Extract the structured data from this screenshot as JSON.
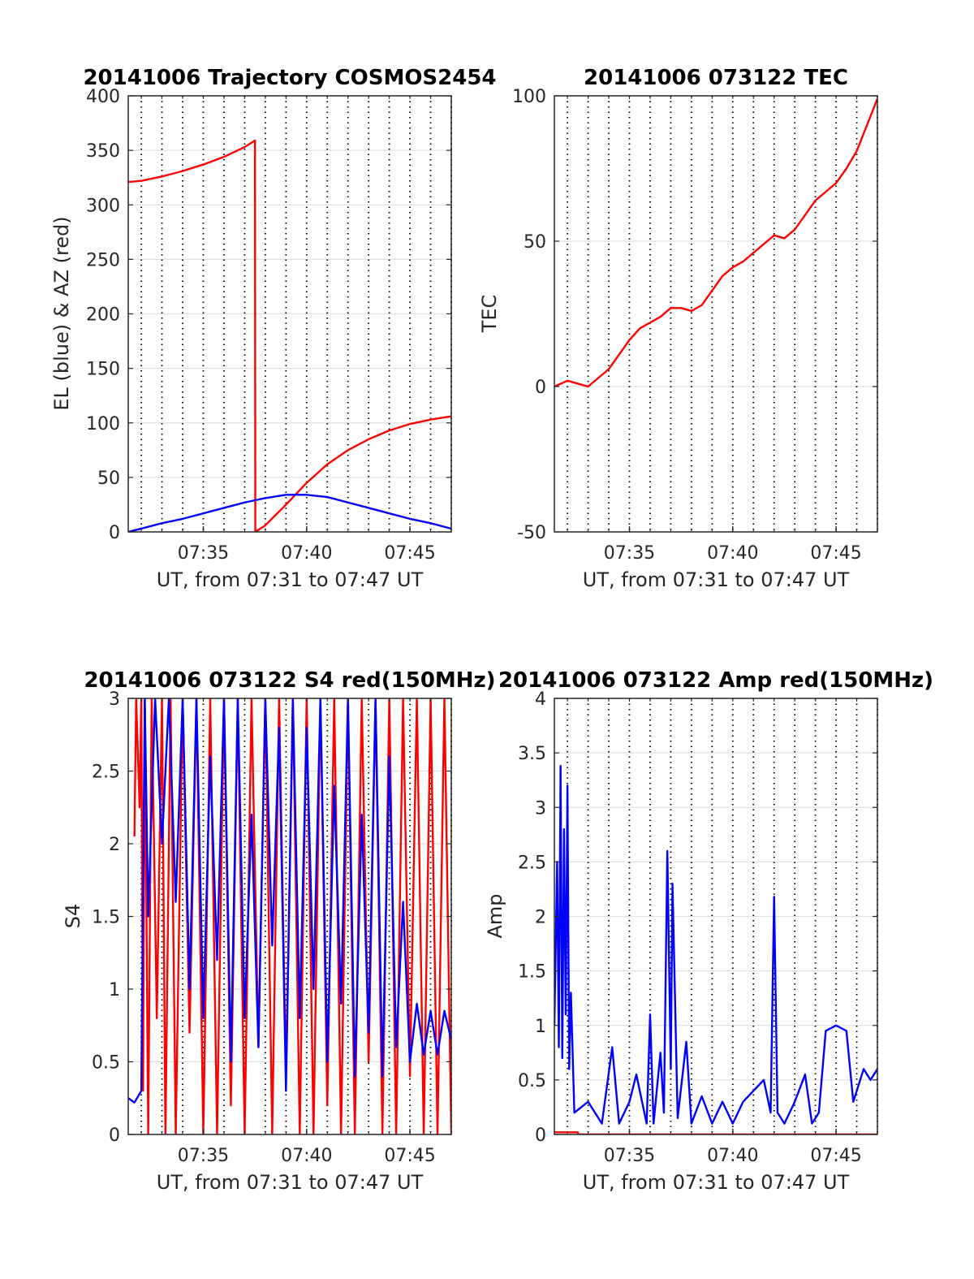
{
  "figure": {
    "background": "#ffffff"
  },
  "colors": {
    "red": "#ff0000",
    "blue": "#0000ff",
    "grid": "#e0e0e0",
    "axis": "#262626"
  },
  "chart_data": [
    {
      "type": "line",
      "title": "20141006 Trajectory COSMOS2454",
      "xlabel": "UT, from 07:31 to 07:47 UT",
      "ylabel": "EL (blue) & AZ (red)",
      "x_range": [
        "07:31:22",
        "07:47:00"
      ],
      "ylim": [
        0,
        400
      ],
      "yticks": [
        0,
        50,
        100,
        150,
        200,
        250,
        300,
        350,
        400
      ],
      "xtick_labels": [
        "07:35",
        "07:40",
        "07:45"
      ],
      "grid": "dotted vertical lines each minute, horizontal grid at y ticks",
      "series": [
        {
          "name": "AZ (red)",
          "color": "#ff0000",
          "points": [
            [
              "07:31:22",
              321
            ],
            [
              "07:32:00",
              322
            ],
            [
              "07:33:00",
              326
            ],
            [
              "07:34:00",
              331
            ],
            [
              "07:35:00",
              337
            ],
            [
              "07:36:00",
              344
            ],
            [
              "07:37:00",
              353
            ],
            [
              "07:37:30",
              359
            ],
            [
              "07:37:31",
              0
            ],
            [
              "07:38:00",
              6
            ],
            [
              "07:39:00",
              25
            ],
            [
              "07:40:00",
              45
            ],
            [
              "07:41:00",
              62
            ],
            [
              "07:42:00",
              75
            ],
            [
              "07:43:00",
              85
            ],
            [
              "07:44:00",
              93
            ],
            [
              "07:45:00",
              99
            ],
            [
              "07:46:00",
              103
            ],
            [
              "07:47:00",
              106
            ]
          ]
        },
        {
          "name": "EL (blue)",
          "color": "#0000ff",
          "points": [
            [
              "07:31:22",
              0
            ],
            [
              "07:32:00",
              3
            ],
            [
              "07:33:00",
              8
            ],
            [
              "07:34:00",
              12
            ],
            [
              "07:35:00",
              17
            ],
            [
              "07:36:00",
              22
            ],
            [
              "07:37:00",
              27
            ],
            [
              "07:38:00",
              31
            ],
            [
              "07:39:00",
              34
            ],
            [
              "07:40:00",
              34
            ],
            [
              "07:41:00",
              32
            ],
            [
              "07:42:00",
              27
            ],
            [
              "07:43:00",
              22
            ],
            [
              "07:44:00",
              17
            ],
            [
              "07:45:00",
              12
            ],
            [
              "07:46:00",
              8
            ],
            [
              "07:47:00",
              3
            ]
          ]
        }
      ]
    },
    {
      "type": "line",
      "title": "20141006 073122 TEC",
      "xlabel": "UT, from 07:31 to 07:47 UT",
      "ylabel": "TEC",
      "x_range": [
        "07:31:22",
        "07:47:00"
      ],
      "ylim": [
        -50,
        100
      ],
      "yticks": [
        -50,
        0,
        50,
        100
      ],
      "xtick_labels": [
        "07:35",
        "07:40",
        "07:45"
      ],
      "series": [
        {
          "name": "TEC",
          "color": "#ff0000",
          "points": [
            [
              "07:31:22",
              0
            ],
            [
              "07:32:00",
              2
            ],
            [
              "07:32:30",
              1
            ],
            [
              "07:33:00",
              0
            ],
            [
              "07:33:30",
              3
            ],
            [
              "07:34:00",
              6
            ],
            [
              "07:34:30",
              11
            ],
            [
              "07:35:00",
              16
            ],
            [
              "07:35:30",
              20
            ],
            [
              "07:36:00",
              22
            ],
            [
              "07:36:30",
              24
            ],
            [
              "07:37:00",
              27
            ],
            [
              "07:37:30",
              27
            ],
            [
              "07:38:00",
              26
            ],
            [
              "07:38:30",
              28
            ],
            [
              "07:39:00",
              33
            ],
            [
              "07:39:30",
              38
            ],
            [
              "07:40:00",
              41
            ],
            [
              "07:40:30",
              43
            ],
            [
              "07:41:00",
              46
            ],
            [
              "07:41:30",
              49
            ],
            [
              "07:42:00",
              52
            ],
            [
              "07:42:30",
              51
            ],
            [
              "07:43:00",
              54
            ],
            [
              "07:43:30",
              59
            ],
            [
              "07:44:00",
              64
            ],
            [
              "07:44:30",
              67
            ],
            [
              "07:45:00",
              70
            ],
            [
              "07:45:30",
              75
            ],
            [
              "07:46:00",
              81
            ],
            [
              "07:46:30",
              90
            ],
            [
              "07:47:00",
              99
            ]
          ]
        }
      ]
    },
    {
      "type": "line",
      "title": "20141006 073122 S4 red(150MHz)",
      "xlabel": "UT, from 07:31 to 07:47 UT",
      "ylabel": "S4",
      "x_range": [
        "07:31:22",
        "07:47:00"
      ],
      "ylim": [
        0,
        3
      ],
      "yticks": [
        0,
        0.5,
        1,
        1.5,
        2,
        2.5,
        3
      ],
      "xtick_labels": [
        "07:35",
        "07:40",
        "07:45"
      ],
      "series": [
        {
          "name": "",
          "color": "#ff0000",
          "points": [
            [
              "07:31:40",
              2.05
            ],
            [
              "07:31:45",
              3
            ],
            [
              "07:31:55",
              2.25
            ],
            [
              "07:32:00",
              3
            ],
            [
              "07:32:05",
              0.3
            ],
            [
              "07:32:10",
              3
            ],
            [
              "07:32:20",
              0
            ],
            [
              "07:32:30",
              3
            ],
            [
              "07:32:45",
              0.8
            ],
            [
              "07:33:00",
              3
            ],
            [
              "07:33:10",
              0
            ],
            [
              "07:33:25",
              3
            ],
            [
              "07:33:40",
              0
            ],
            [
              "07:34:00",
              3
            ],
            [
              "07:34:20",
              0.7
            ],
            [
              "07:34:40",
              3
            ],
            [
              "07:35:00",
              0
            ],
            [
              "07:35:20",
              3
            ],
            [
              "07:35:40",
              0
            ],
            [
              "07:36:00",
              3
            ],
            [
              "07:36:20",
              0.2
            ],
            [
              "07:36:40",
              3
            ],
            [
              "07:37:00",
              0
            ],
            [
              "07:37:20",
              3
            ],
            [
              "07:37:40",
              0.6
            ],
            [
              "07:38:00",
              3
            ],
            [
              "07:38:20",
              0
            ],
            [
              "07:38:40",
              3
            ],
            [
              "07:39:00",
              0.4
            ],
            [
              "07:39:20",
              3
            ],
            [
              "07:39:40",
              0
            ],
            [
              "07:40:00",
              3
            ],
            [
              "07:40:20",
              0
            ],
            [
              "07:40:40",
              3
            ],
            [
              "07:41:00",
              0.2
            ],
            [
              "07:41:20",
              3
            ],
            [
              "07:41:40",
              0
            ],
            [
              "07:42:00",
              3
            ],
            [
              "07:42:20",
              0
            ],
            [
              "07:42:40",
              3
            ],
            [
              "07:43:00",
              0.5
            ],
            [
              "07:43:20",
              3
            ],
            [
              "07:43:40",
              0
            ],
            [
              "07:44:00",
              3
            ],
            [
              "07:44:20",
              0
            ],
            [
              "07:44:40",
              3
            ],
            [
              "07:45:00",
              0.4
            ],
            [
              "07:45:20",
              3
            ],
            [
              "07:45:40",
              0
            ],
            [
              "07:46:00",
              3
            ],
            [
              "07:46:20",
              0
            ],
            [
              "07:46:40",
              3
            ],
            [
              "07:47:00",
              0
            ]
          ]
        },
        {
          "name": "",
          "color": "#0000ff",
          "points": [
            [
              "07:31:22",
              0.25
            ],
            [
              "07:31:40",
              0.22
            ],
            [
              "07:32:00",
              0.3
            ],
            [
              "07:32:10",
              3
            ],
            [
              "07:32:20",
              1.5
            ],
            [
              "07:32:40",
              3
            ],
            [
              "07:33:00",
              2.0
            ],
            [
              "07:33:20",
              3
            ],
            [
              "07:33:40",
              1.6
            ],
            [
              "07:34:00",
              3
            ],
            [
              "07:34:20",
              1.0
            ],
            [
              "07:34:40",
              3
            ],
            [
              "07:35:00",
              0.8
            ],
            [
              "07:35:20",
              2.6
            ],
            [
              "07:35:40",
              1.2
            ],
            [
              "07:36:00",
              3
            ],
            [
              "07:36:20",
              0.5
            ],
            [
              "07:36:40",
              3
            ],
            [
              "07:37:00",
              0.8
            ],
            [
              "07:37:20",
              2.2
            ],
            [
              "07:37:40",
              0.6
            ],
            [
              "07:38:00",
              3
            ],
            [
              "07:38:20",
              1.3
            ],
            [
              "07:38:40",
              2.8
            ],
            [
              "07:39:00",
              0.3
            ],
            [
              "07:39:20",
              3
            ],
            [
              "07:39:40",
              0.8
            ],
            [
              "07:40:00",
              2.8
            ],
            [
              "07:40:20",
              1.0
            ],
            [
              "07:40:40",
              3
            ],
            [
              "07:41:00",
              0.5
            ],
            [
              "07:41:20",
              2.4
            ],
            [
              "07:41:40",
              0.9
            ],
            [
              "07:42:00",
              3
            ],
            [
              "07:42:20",
              0.4
            ],
            [
              "07:42:40",
              2.2
            ],
            [
              "07:43:00",
              0.7
            ],
            [
              "07:43:20",
              3
            ],
            [
              "07:43:40",
              0.4
            ],
            [
              "07:44:00",
              2.6
            ],
            [
              "07:44:20",
              0.6
            ],
            [
              "07:44:40",
              1.6
            ],
            [
              "07:45:00",
              0.5
            ],
            [
              "07:45:20",
              0.9
            ],
            [
              "07:45:40",
              0.55
            ],
            [
              "07:46:00",
              0.85
            ],
            [
              "07:46:20",
              0.55
            ],
            [
              "07:46:40",
              0.85
            ],
            [
              "07:47:00",
              0.65
            ]
          ]
        }
      ]
    },
    {
      "type": "line",
      "title": "20141006 073122 Amp red(150MHz)",
      "xlabel": "UT, from 07:31 to 07:47 UT",
      "ylabel": "Amp",
      "x_range": [
        "07:31:22",
        "07:47:00"
      ],
      "ylim": [
        0,
        4
      ],
      "yticks": [
        0,
        0.5,
        1,
        1.5,
        2,
        2.5,
        3,
        3.5,
        4
      ],
      "xtick_labels": [
        "07:35",
        "07:40",
        "07:45"
      ],
      "series": [
        {
          "name": "",
          "color": "#ff0000",
          "points": [
            [
              "07:31:22",
              0.02
            ],
            [
              "07:32:30",
              0.02
            ],
            [
              "07:32:31",
              0
            ],
            [
              "07:47:00",
              0
            ]
          ]
        },
        {
          "name": "",
          "color": "#0000ff",
          "points": [
            [
              "07:31:22",
              1.0
            ],
            [
              "07:31:30",
              2.5
            ],
            [
              "07:31:35",
              0.8
            ],
            [
              "07:31:40",
              3.38
            ],
            [
              "07:31:45",
              0.7
            ],
            [
              "07:31:50",
              2.8
            ],
            [
              "07:31:55",
              1.1
            ],
            [
              "07:32:00",
              3.2
            ],
            [
              "07:32:05",
              0.6
            ],
            [
              "07:32:10",
              1.3
            ],
            [
              "07:32:20",
              0.2
            ],
            [
              "07:33:00",
              0.3
            ],
            [
              "07:33:40",
              0.1
            ],
            [
              "07:34:10",
              0.8
            ],
            [
              "07:34:30",
              0.1
            ],
            [
              "07:35:00",
              0.3
            ],
            [
              "07:35:20",
              0.55
            ],
            [
              "07:35:50",
              0.1
            ],
            [
              "07:36:00",
              1.1
            ],
            [
              "07:36:10",
              0.1
            ],
            [
              "07:36:30",
              0.75
            ],
            [
              "07:36:40",
              0.2
            ],
            [
              "07:36:50",
              2.6
            ],
            [
              "07:37:00",
              0.6
            ],
            [
              "07:37:05",
              2.3
            ],
            [
              "07:37:20",
              0.15
            ],
            [
              "07:37:45",
              0.85
            ],
            [
              "07:38:00",
              0.1
            ],
            [
              "07:38:30",
              0.35
            ],
            [
              "07:39:00",
              0.1
            ],
            [
              "07:39:30",
              0.3
            ],
            [
              "07:40:00",
              0.1
            ],
            [
              "07:40:30",
              0.3
            ],
            [
              "07:41:00",
              0.4
            ],
            [
              "07:41:30",
              0.5
            ],
            [
              "07:41:50",
              0.2
            ],
            [
              "07:42:00",
              2.18
            ],
            [
              "07:42:10",
              0.2
            ],
            [
              "07:42:30",
              0.1
            ],
            [
              "07:43:00",
              0.3
            ],
            [
              "07:43:30",
              0.55
            ],
            [
              "07:43:50",
              0.1
            ],
            [
              "07:44:10",
              0.2
            ],
            [
              "07:44:30",
              0.95
            ],
            [
              "07:45:00",
              1.0
            ],
            [
              "07:45:30",
              0.95
            ],
            [
              "07:45:50",
              0.3
            ],
            [
              "07:46:20",
              0.6
            ],
            [
              "07:46:40",
              0.5
            ],
            [
              "07:47:00",
              0.6
            ]
          ]
        }
      ]
    }
  ]
}
